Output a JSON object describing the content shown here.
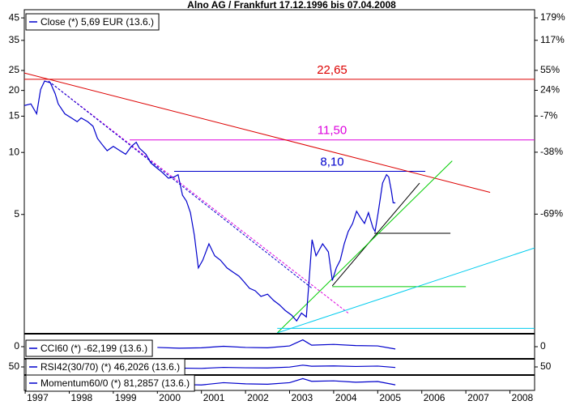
{
  "title": "Alno AG / Frankfurt 17.12.1996  bis 07.04.2008",
  "chart_data": [
    {
      "type": "line",
      "log": true,
      "x": [
        1996.98,
        1997.13,
        1997.26,
        1997.35,
        1997.44,
        1997.57,
        1997.68,
        1997.75,
        1997.9,
        1998.05,
        1998.18,
        1998.27,
        1998.42,
        1998.54,
        1998.64,
        1998.75,
        1998.86,
        1999.0,
        1999.15,
        1999.28,
        1999.41,
        1999.52,
        1999.59,
        1999.74,
        1999.85,
        1999.96,
        2000.11,
        2000.25,
        2000.38,
        2000.47,
        2000.57,
        2000.66,
        2000.75,
        2000.84,
        2000.93,
        2001.03,
        2001.17,
        2001.3,
        2001.43,
        2001.58,
        2001.72,
        2001.85,
        2001.94,
        2002.09,
        2002.22,
        2002.35,
        2002.5,
        2002.64,
        2002.77,
        2002.9,
        2003.05,
        2003.16,
        2003.27,
        2003.38,
        2003.45,
        2003.51,
        2003.6,
        2003.75,
        2003.88,
        2003.97,
        2004.06,
        2004.15,
        2004.24,
        2004.33,
        2004.43,
        2004.52,
        2004.61,
        2004.7,
        2004.79,
        2004.89,
        2004.94,
        2005.01,
        2005.11,
        2005.2,
        2005.25,
        2005.31,
        2005.35,
        2005.4
      ],
      "series": [
        {
          "name": "Close (*) 5,69 EUR (13.6.)",
          "color": "#0000cc",
          "values": [
            16.9,
            17.2,
            15.4,
            20.2,
            22.2,
            21.8,
            19.3,
            17.2,
            15.4,
            14.7,
            14.1,
            14.7,
            14.1,
            13.4,
            11.7,
            10.9,
            10.2,
            10.7,
            10.2,
            9.8,
            10.7,
            11.2,
            10.5,
            9.8,
            8.9,
            8.5,
            8.0,
            7.5,
            7.6,
            7.8,
            6.2,
            5.8,
            5.1,
            3.95,
            2.75,
            3.0,
            3.6,
            3.15,
            3.0,
            2.75,
            2.62,
            2.51,
            2.39,
            2.19,
            2.13,
            2.0,
            2.05,
            1.91,
            1.82,
            1.71,
            1.62,
            1.52,
            1.66,
            1.59,
            2.51,
            3.77,
            3.15,
            3.6,
            3.29,
            2.39,
            2.75,
            3.0,
            3.6,
            4.13,
            4.52,
            5.18,
            4.82,
            4.52,
            5.1,
            4.32,
            4.13,
            5.1,
            7.1,
            7.8,
            7.6,
            6.5,
            5.7,
            5.69
          ]
        }
      ],
      "xlim": [
        1996.98,
        2008.56
      ],
      "xticks": [
        1997,
        1998,
        1999,
        2000,
        2001,
        2002,
        2003,
        2004,
        2005,
        2006,
        2007,
        2008
      ],
      "ylim": [
        1.33,
        49.3
      ],
      "yticks": [
        45,
        35,
        25,
        20,
        15,
        10,
        5
      ],
      "y2log_relative": true,
      "y2lim": [
        -91.8,
        205.6
      ],
      "y2ticks": [
        {
          "value": 179,
          "label": "179%"
        },
        {
          "value": 117,
          "label": "117%"
        },
        {
          "value": 55,
          "label": "55%"
        },
        {
          "value": 24,
          "label": "24%"
        },
        {
          "value": -7,
          "label": "-7%"
        },
        {
          "value": -38,
          "label": "-38%"
        },
        {
          "value": -69,
          "label": "-69%"
        }
      ],
      "levels": [
        {
          "value": 22.65,
          "label": "22,65",
          "color": "#dd0000",
          "x": [
            1996.98,
            2008.56
          ]
        },
        {
          "value": 11.5,
          "label": "11,50",
          "color": "#dd00dd",
          "x": [
            1999.37,
            2008.56
          ]
        },
        {
          "value": 8.1,
          "label": "8,10",
          "color": "#0000cc",
          "x": [
            2000.38,
            2006.08
          ]
        }
      ],
      "trendlines": [
        {
          "color": "#dd0000",
          "dash": false,
          "x": [
            1996.98,
            2007.55
          ],
          "values": [
            24.3,
            6.4
          ]
        },
        {
          "color": "#dd00dd",
          "dash": true,
          "x": [
            1997.53,
            2004.33
          ],
          "values": [
            22.2,
            1.66
          ]
        },
        {
          "color": "#0000cc",
          "dash": true,
          "x": [
            1997.53,
            2003.51
          ],
          "values": [
            22.2,
            2.19
          ]
        },
        {
          "color": "#000000",
          "dash": false,
          "x": [
            2003.97,
            2005.95
          ],
          "values": [
            2.25,
            7.1
          ]
        },
        {
          "color": "#000000",
          "dash": false,
          "x": [
            2004.92,
            2006.65
          ],
          "values": [
            4.05,
            4.05
          ]
        },
        {
          "color": "#00cc00",
          "dash": false,
          "x": [
            2002.72,
            2006.69
          ],
          "values": [
            1.33,
            9.1
          ]
        },
        {
          "color": "#00cc00",
          "dash": false,
          "x": [
            2003.97,
            2007.0
          ],
          "values": [
            2.23,
            2.23
          ]
        },
        {
          "color": "#00ccee",
          "dash": false,
          "x": [
            2002.72,
            2008.56
          ],
          "values": [
            1.33,
            3.44
          ]
        },
        {
          "color": "#00ccee",
          "dash": false,
          "x": [
            2002.72,
            2008.56
          ],
          "values": [
            1.4,
            1.4
          ]
        }
      ]
    },
    {
      "type": "line",
      "x": [
        2000.0,
        2000.5,
        2001.0,
        2001.5,
        2002.0,
        2002.5,
        2003.0,
        2003.3,
        2003.5,
        2004.0,
        2004.5,
        2005.0,
        2005.4
      ],
      "series": [
        {
          "name": "CCI60 (*) -62,199 (13.6.)",
          "color": "#0000cc",
          "values": [
            -20,
            -40,
            -30,
            10,
            -20,
            -30,
            20,
            180,
            40,
            60,
            30,
            20,
            -62.199
          ]
        }
      ],
      "ylim": [
        -300,
        300
      ],
      "yticks": [
        0
      ]
    },
    {
      "type": "line",
      "x": [
        2000.0,
        2000.5,
        2001.0,
        2001.5,
        2002.0,
        2002.5,
        2003.0,
        2003.3,
        2003.5,
        2004.0,
        2004.5,
        2005.0,
        2005.4
      ],
      "series": [
        {
          "name": "RSI42(30/70) (*) 46,2026 (13.6.)",
          "color": "#0000cc",
          "values": [
            46,
            42,
            40,
            47,
            44,
            43,
            49,
            62,
            55,
            57,
            53,
            56,
            46.2026
          ]
        }
      ],
      "ylim": [
        0,
        100
      ],
      "yticks": [
        50
      ]
    },
    {
      "type": "line",
      "x": [
        2000.0,
        2000.5,
        2001.0,
        2001.5,
        2002.0,
        2002.5,
        2003.0,
        2003.3,
        2003.5,
        2004.0,
        2004.5,
        2005.0,
        2005.4
      ],
      "series": [
        {
          "name": "Momentum60/0 (*) 81,2857 (13.6.)",
          "color": "#0000cc",
          "values": [
            95,
            85,
            80,
            105,
            92,
            88,
            105,
            150,
            120,
            125,
            110,
            118,
            81.2857
          ]
        }
      ],
      "ylim": [
        20,
        180
      ]
    }
  ]
}
